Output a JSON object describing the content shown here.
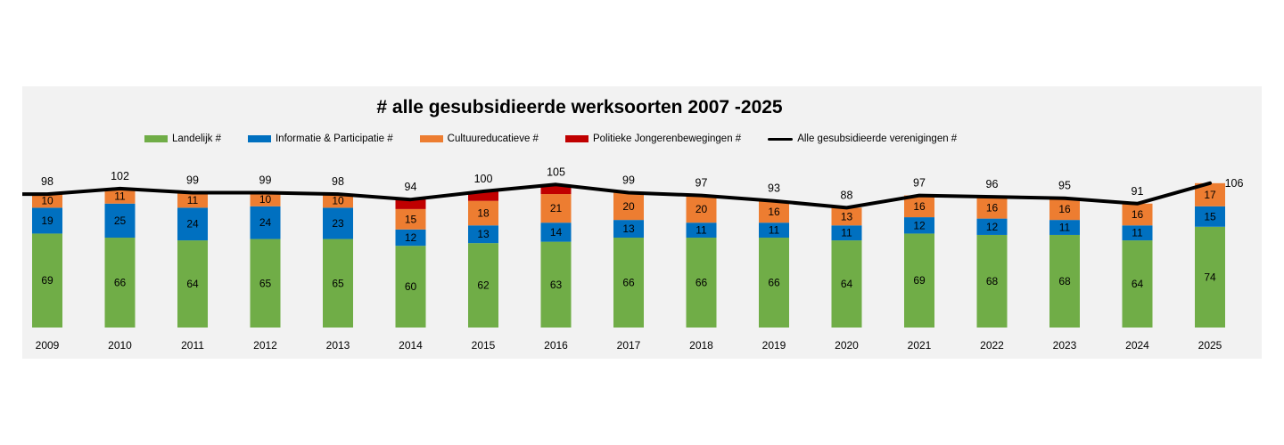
{
  "chart_data": {
    "type": "bar",
    "stacked": true,
    "title": "# alle gesubsidieerde werksoorten 2007 -2025",
    "categories": [
      "2009",
      "2010",
      "2011",
      "2012",
      "2013",
      "2014",
      "2015",
      "2016",
      "2017",
      "2018",
      "2019",
      "2020",
      "2021",
      "2022",
      "2023",
      "2024",
      "2025"
    ],
    "series": [
      {
        "name": "Landelijk #",
        "color": "#70ad47",
        "values": [
          69,
          66,
          64,
          65,
          65,
          60,
          62,
          63,
          66,
          66,
          66,
          64,
          69,
          68,
          68,
          64,
          74
        ],
        "labels": [
          "69",
          "66",
          "64",
          "65",
          "65",
          "60",
          "62",
          "63",
          "66",
          "66",
          "66",
          "64",
          "69",
          "68",
          "68",
          "64",
          "74"
        ]
      },
      {
        "name": "Informatie & Participatie #",
        "color": "#0070c0",
        "values": [
          19,
          25,
          24,
          24,
          23,
          12,
          13,
          14,
          13,
          11,
          11,
          11,
          12,
          12,
          11,
          11,
          15
        ],
        "labels": [
          "19",
          "25",
          "24",
          "24",
          "23",
          "12",
          "13",
          "14",
          "13",
          "11",
          "11",
          "11",
          "12",
          "12",
          "11",
          "11",
          "15"
        ]
      },
      {
        "name": "Cultuureducatieve #",
        "color": "#ed7d31",
        "values": [
          10,
          11,
          11,
          10,
          10,
          15,
          18,
          21,
          20,
          20,
          16,
          13,
          16,
          16,
          16,
          16,
          17
        ],
        "labels": [
          "10",
          "11",
          "11",
          "10",
          "10",
          "15",
          "18",
          "21",
          "20",
          "20",
          "16",
          "13",
          "16",
          "16",
          "16",
          "16",
          "17"
        ]
      },
      {
        "name": "Politieke Jongerenbewegingen #",
        "color": "#c00000",
        "values": [
          0,
          0,
          0,
          0,
          0,
          7,
          7,
          7,
          0,
          0,
          0,
          0,
          0,
          0,
          0,
          0,
          0
        ]
      }
    ],
    "line": {
      "name": "Alle gesubsidieerde verenigingen #",
      "color": "#000000",
      "values": [
        98,
        102,
        99,
        99,
        98,
        94,
        100,
        105,
        99,
        97,
        93,
        88,
        97,
        96,
        95,
        91,
        106
      ],
      "labels": [
        "98",
        "102",
        "99",
        "99",
        "98",
        "94",
        "100",
        "105",
        "99",
        "97",
        "93",
        "88",
        "97",
        "96",
        "95",
        "91",
        "106"
      ]
    },
    "ylim": [
      0,
      120
    ],
    "grid": false,
    "legend_position": "top"
  }
}
